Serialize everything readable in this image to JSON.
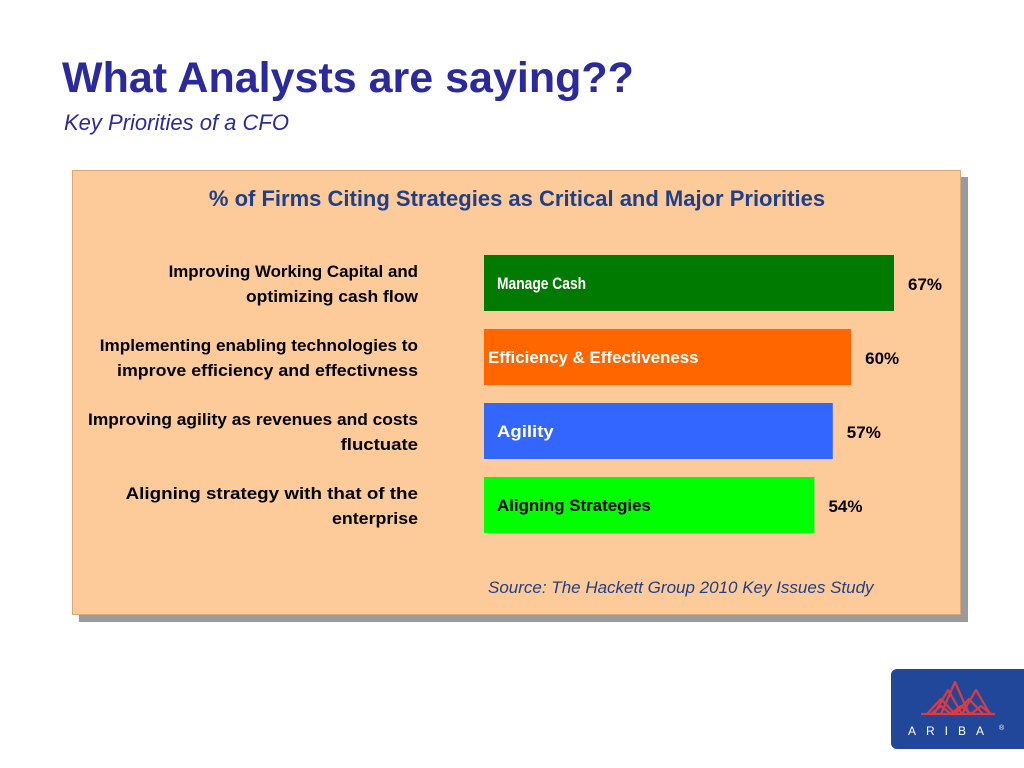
{
  "slide": {
    "title": "What Analysts are saying??",
    "subtitle": "Key Priorities of a CFO"
  },
  "chart_data": {
    "type": "bar",
    "title": "% of Firms Citing Strategies as Critical and Major Priorities",
    "categories": [
      "Improving Working Capital and optimizing cash flow",
      "Implementing enabling technologies to improve efficiency and effectivness",
      "Improving agility as revenues and costs fluctuate",
      "Aligning strategy with that of the enterprise"
    ],
    "category_lines": [
      [
        "Improving Working Capital and",
        "optimizing cash flow"
      ],
      [
        "Implementing enabling technologies to",
        "improve efficiency and effectivness"
      ],
      [
        "Improving agility as revenues and costs",
        "fluctuate"
      ],
      [
        "Aligning strategy with that of the",
        "enterprise"
      ]
    ],
    "bar_labels": [
      "Manage Cash",
      "Efficiency & Effectiveness",
      "Agility",
      "Aligning Strategies"
    ],
    "values": [
      67,
      60,
      57,
      54
    ],
    "value_labels": [
      "67%",
      "60%",
      "57%",
      "54%"
    ],
    "colors": [
      "#007a00",
      "#ff6600",
      "#3366ff",
      "#00ff00"
    ],
    "bar_label_colors": [
      "#ffffff",
      "#ffffff",
      "#ffffff",
      "#000000"
    ],
    "orientation": "horizontal",
    "grid": false,
    "legend": "none",
    "source": "Source: The Hackett Group 2010 Key Issues Study"
  },
  "logo": {
    "text": "ARIBA",
    "mark": "®",
    "colors": {
      "background": "#21479a",
      "emblem": "#e03a3e",
      "text": "#ffffff"
    }
  }
}
